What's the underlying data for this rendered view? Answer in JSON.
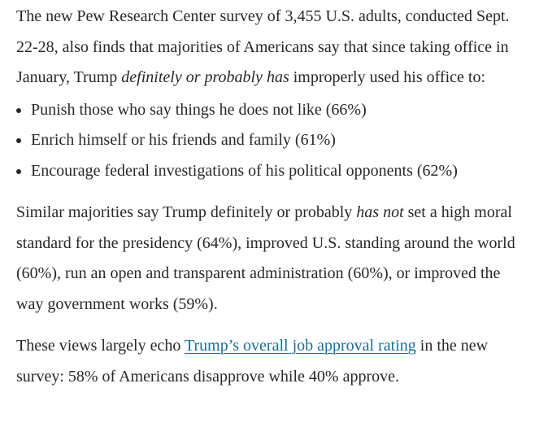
{
  "colors": {
    "text": "#282828",
    "link": "#1a6e96",
    "background": "#ffffff"
  },
  "content": {
    "p1": {
      "segments": [
        {
          "text": "The new Pew Research Center survey of 3,455 U.S. adults, conducted Sept. 22-28, also finds that majorities of Americans say that since taking office in January, Trump ",
          "style": "normal"
        },
        {
          "text": "definitely or probably has",
          "style": "italic"
        },
        {
          "text": " improperly used his office to:",
          "style": "normal"
        }
      ]
    },
    "bullets": [
      "Punish those who say things he does not like (66%)",
      "Enrich himself or his friends and family (61%)",
      "Encourage federal investigations of his political opponents (62%)"
    ],
    "p2": {
      "segments": [
        {
          "text": "Similar majorities say Trump definitely or probably ",
          "style": "normal"
        },
        {
          "text": "has not",
          "style": "italic"
        },
        {
          "text": " set a high moral standard for the presidency (64%), improved U.S. standing around the world (60%), run an open and transparent administration (60%), or improved the way government works (59%).",
          "style": "normal"
        }
      ]
    },
    "p3": {
      "segments": [
        {
          "text": "These views largely echo ",
          "style": "normal"
        },
        {
          "text": "Trump’s overall job approval rating",
          "style": "link"
        },
        {
          "text": " in the new survey: 58% of Americans disapprove while 40% approve.",
          "style": "normal"
        }
      ]
    }
  }
}
